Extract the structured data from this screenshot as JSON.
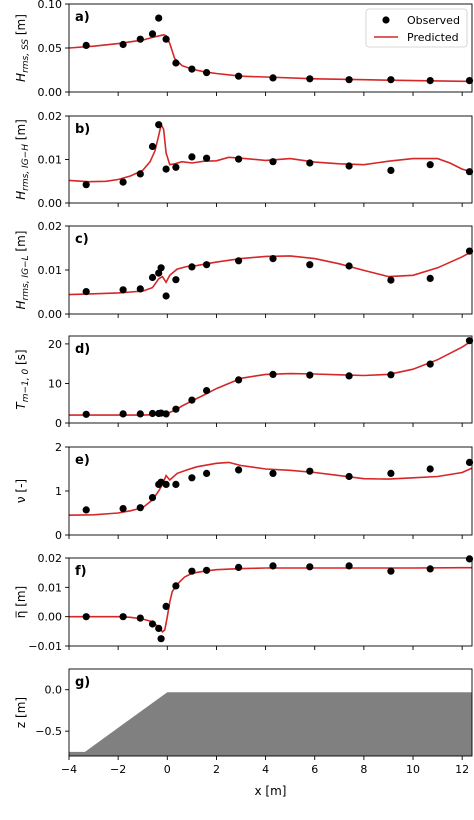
{
  "figure": {
    "xlabel": "x [m]",
    "xticks": [
      -4,
      -2,
      0,
      2,
      4,
      6,
      8,
      10,
      12
    ],
    "xticklabels": [
      "−4",
      "−2",
      "0",
      "2",
      "4",
      "6",
      "8",
      "10",
      "12"
    ],
    "xlim": [
      -4,
      12.4
    ],
    "legend": {
      "observed": "Observed",
      "predicted": "Predicted",
      "placement": "top-right",
      "panel": "a"
    },
    "colors": {
      "predicted": "#d62728",
      "observed": "#000000",
      "bed": "#808080"
    }
  },
  "chart_data": [
    {
      "panel": "a",
      "label": "a)",
      "type": "line",
      "ylabel_main": "H",
      "ylabel_sub": "rms, SS",
      "ylabel_unit": " [m]",
      "ylim": [
        0,
        0.1
      ],
      "yticks": [
        0,
        0.05,
        0.1
      ],
      "yticklabels": [
        "0.00",
        "0.05",
        "0.10"
      ],
      "series": [
        {
          "name": "Observed",
          "x": [
            -3.3,
            -1.8,
            -1.1,
            -0.6,
            -0.35,
            -0.05,
            0.35,
            1.0,
            1.6,
            2.9,
            4.3,
            5.8,
            7.4,
            9.1,
            10.7,
            12.3
          ],
          "y": [
            0.053,
            0.054,
            0.06,
            0.066,
            0.084,
            0.06,
            0.033,
            0.026,
            0.022,
            0.018,
            0.016,
            0.015,
            0.014,
            0.014,
            0.013,
            0.013
          ]
        },
        {
          "name": "Predicted",
          "x": [
            -4,
            -3,
            -2,
            -1.5,
            -1,
            -0.6,
            -0.3,
            -0.15,
            -0.05,
            0.1,
            0.3,
            0.6,
            1,
            1.5,
            2,
            3,
            4,
            6,
            8,
            10,
            12.4
          ],
          "y": [
            0.05,
            0.052,
            0.055,
            0.057,
            0.059,
            0.062,
            0.064,
            0.065,
            0.064,
            0.055,
            0.038,
            0.03,
            0.026,
            0.023,
            0.021,
            0.018,
            0.017,
            0.015,
            0.014,
            0.013,
            0.012
          ]
        }
      ]
    },
    {
      "panel": "b",
      "label": "b)",
      "type": "line",
      "ylabel_main": "H",
      "ylabel_sub": "rms, IG−H",
      "ylabel_unit": " [m]",
      "ylim": [
        0,
        0.02
      ],
      "yticks": [
        0,
        0.01,
        0.02
      ],
      "yticklabels": [
        "0.00",
        "0.01",
        "0.02"
      ],
      "series": [
        {
          "name": "Observed",
          "x": [
            -3.3,
            -1.8,
            -1.1,
            -0.6,
            -0.35,
            -0.05,
            0.35,
            1.0,
            1.6,
            2.9,
            4.3,
            5.8,
            7.4,
            9.1,
            10.7,
            12.3
          ],
          "y": [
            0.0042,
            0.0048,
            0.0067,
            0.013,
            0.018,
            0.0078,
            0.0082,
            0.0106,
            0.0103,
            0.0101,
            0.0095,
            0.0092,
            0.0085,
            0.0075,
            0.0088,
            0.0072
          ]
        },
        {
          "name": "Predicted",
          "x": [
            -4,
            -3.2,
            -2.5,
            -2,
            -1.5,
            -1,
            -0.7,
            -0.5,
            -0.35,
            -0.25,
            -0.15,
            -0.05,
            0.1,
            0.3,
            0.6,
            1,
            1.5,
            2,
            2.5,
            3,
            4,
            5,
            6,
            7,
            8,
            9,
            10,
            11,
            11.5,
            12,
            12.4
          ],
          "y": [
            0.0052,
            0.0049,
            0.005,
            0.0054,
            0.0062,
            0.0075,
            0.0095,
            0.012,
            0.0155,
            0.018,
            0.017,
            0.0115,
            0.0088,
            0.009,
            0.0095,
            0.0092,
            0.0096,
            0.0097,
            0.0105,
            0.0103,
            0.0098,
            0.0102,
            0.0094,
            0.009,
            0.0088,
            0.0096,
            0.0102,
            0.0102,
            0.0092,
            0.0078,
            0.0071
          ]
        }
      ]
    },
    {
      "panel": "c",
      "label": "c)",
      "type": "line",
      "ylabel_main": "H",
      "ylabel_sub": "rms, IG−L",
      "ylabel_unit": " [m]",
      "ylim": [
        0,
        0.02
      ],
      "yticks": [
        0,
        0.01,
        0.02
      ],
      "yticklabels": [
        "0.00",
        "0.01",
        "0.02"
      ],
      "series": [
        {
          "name": "Observed",
          "x": [
            -3.3,
            -1.8,
            -1.1,
            -0.6,
            -0.35,
            -0.25,
            -0.05,
            0.35,
            1.0,
            1.6,
            2.9,
            4.3,
            5.8,
            7.4,
            9.1,
            10.7,
            12.3
          ],
          "y": [
            0.0051,
            0.0055,
            0.0057,
            0.0083,
            0.0093,
            0.0105,
            0.0041,
            0.0078,
            0.0107,
            0.0112,
            0.0121,
            0.0126,
            0.0112,
            0.0109,
            0.0077,
            0.0081,
            0.0143
          ]
        },
        {
          "name": "Predicted",
          "x": [
            -4,
            -3,
            -2,
            -1.5,
            -1,
            -0.6,
            -0.35,
            -0.2,
            -0.05,
            0.1,
            0.4,
            0.8,
            1.2,
            2,
            3,
            4,
            5,
            6,
            7,
            8,
            9,
            10,
            11,
            12,
            12.4
          ],
          "y": [
            0.0044,
            0.0046,
            0.0048,
            0.005,
            0.0052,
            0.006,
            0.008,
            0.0085,
            0.0072,
            0.0088,
            0.0102,
            0.0108,
            0.011,
            0.0118,
            0.0126,
            0.0131,
            0.0132,
            0.0126,
            0.0114,
            0.0099,
            0.0085,
            0.0088,
            0.0105,
            0.013,
            0.0142
          ]
        }
      ]
    },
    {
      "panel": "d",
      "label": "d)",
      "type": "line",
      "ylabel_main": "T",
      "ylabel_sub": "m−1, 0",
      "ylabel_unit": " [s]",
      "ylim": [
        0,
        22
      ],
      "yticks": [
        0,
        10,
        20
      ],
      "yticklabels": [
        "0",
        "10",
        "20"
      ],
      "series": [
        {
          "name": "Observed",
          "x": [
            -3.3,
            -1.8,
            -1.1,
            -0.6,
            -0.35,
            -0.25,
            -0.05,
            0.35,
            1.0,
            1.6,
            2.9,
            4.3,
            5.8,
            7.4,
            9.1,
            10.7,
            12.3
          ],
          "y": [
            2.2,
            2.3,
            2.3,
            2.4,
            2.4,
            2.5,
            2.3,
            3.5,
            5.8,
            8.2,
            10.9,
            12.3,
            12.1,
            11.9,
            12.2,
            14.9,
            20.8
          ]
        },
        {
          "name": "Predicted",
          "x": [
            -4,
            -2,
            -1,
            -0.5,
            -0.2,
            0,
            0.3,
            0.6,
            1,
            1.5,
            2,
            2.5,
            3,
            4,
            5,
            6,
            7,
            8,
            9,
            10,
            11,
            12,
            12.4
          ],
          "y": [
            2,
            2,
            2,
            2.1,
            2.2,
            2.4,
            3.2,
            4.3,
            5.6,
            7.1,
            8.7,
            10,
            11.3,
            12.3,
            12.5,
            12.4,
            12.2,
            12,
            12.3,
            13.6,
            16,
            19.2,
            20.8
          ]
        }
      ]
    },
    {
      "panel": "e",
      "label": "e)",
      "type": "line",
      "ylabel_main": "ν",
      "ylabel_sub": "",
      "ylabel_unit": " [-]",
      "ylim": [
        0,
        2
      ],
      "yticks": [
        0,
        1,
        2
      ],
      "yticklabels": [
        "0",
        "1",
        "2"
      ],
      "series": [
        {
          "name": "Observed",
          "x": [
            -3.3,
            -1.8,
            -1.1,
            -0.6,
            -0.35,
            -0.25,
            -0.05,
            0.35,
            1.0,
            1.6,
            2.9,
            4.3,
            5.8,
            7.4,
            9.1,
            10.7,
            12.3
          ],
          "y": [
            0.57,
            0.6,
            0.62,
            0.85,
            1.15,
            1.2,
            1.15,
            1.15,
            1.3,
            1.4,
            1.48,
            1.4,
            1.45,
            1.33,
            1.4,
            1.5,
            1.65
          ]
        },
        {
          "name": "Predicted",
          "x": [
            -4,
            -3,
            -2,
            -1.5,
            -1,
            -0.6,
            -0.35,
            -0.2,
            -0.05,
            0.1,
            0.4,
            0.8,
            1.2,
            2,
            2.5,
            3,
            4,
            5,
            6,
            7,
            8,
            9,
            10,
            11,
            12,
            12.4
          ],
          "y": [
            0.45,
            0.46,
            0.5,
            0.55,
            0.62,
            0.8,
            1.0,
            1.15,
            1.35,
            1.25,
            1.4,
            1.48,
            1.55,
            1.63,
            1.65,
            1.58,
            1.5,
            1.47,
            1.42,
            1.35,
            1.28,
            1.27,
            1.3,
            1.33,
            1.42,
            1.52
          ]
        }
      ]
    },
    {
      "panel": "f",
      "label": "f)",
      "type": "line",
      "ylabel_main": "η̅",
      "ylabel_sub": "",
      "ylabel_unit": " [m]",
      "ylim": [
        -0.01,
        0.02
      ],
      "yticks": [
        -0.01,
        0,
        0.01,
        0.02
      ],
      "yticklabels": [
        "−0.01",
        "0.00",
        "0.01",
        "0.02"
      ],
      "series": [
        {
          "name": "Observed",
          "x": [
            -3.3,
            -1.8,
            -1.1,
            -0.6,
            -0.35,
            -0.25,
            -0.05,
            0.35,
            1.0,
            1.6,
            2.9,
            4.3,
            5.8,
            7.4,
            9.1,
            10.7,
            12.3
          ],
          "y": [
            0.0,
            0.0,
            -0.0005,
            -0.0025,
            -0.004,
            -0.0075,
            0.0035,
            0.0105,
            0.0155,
            0.0158,
            0.0168,
            0.0173,
            0.017,
            0.0173,
            0.0155,
            0.0163,
            0.0197
          ]
        },
        {
          "name": "Predicted",
          "x": [
            -4,
            -3,
            -2,
            -1.5,
            -1,
            -0.7,
            -0.5,
            -0.35,
            -0.2,
            -0.1,
            0,
            0.1,
            0.2,
            0.4,
            0.7,
            1,
            1.5,
            2,
            3,
            4,
            6,
            8,
            10,
            12,
            12.4
          ],
          "y": [
            0.0,
            0.0,
            0.0,
            -0.0002,
            -0.0008,
            -0.0015,
            -0.0025,
            -0.0035,
            -0.0052,
            -0.0045,
            0.0,
            0.005,
            0.0085,
            0.011,
            0.0135,
            0.0148,
            0.0155,
            0.016,
            0.0164,
            0.0166,
            0.0166,
            0.0166,
            0.0166,
            0.0167,
            0.0167
          ]
        }
      ]
    },
    {
      "panel": "g",
      "label": "g)",
      "type": "area",
      "ylabel_main": "z",
      "ylabel_sub": "",
      "ylabel_unit": " [m]",
      "ylim": [
        -0.8,
        0.25
      ],
      "yticks": [
        -0.5,
        0.0
      ],
      "yticklabels": [
        "−0.5",
        "0.0"
      ],
      "bed": {
        "x": [
          -4,
          -3.35,
          0,
          12.4
        ],
        "z": [
          -0.75,
          -0.75,
          -0.03,
          -0.03
        ],
        "bottom": -0.8
      }
    }
  ]
}
